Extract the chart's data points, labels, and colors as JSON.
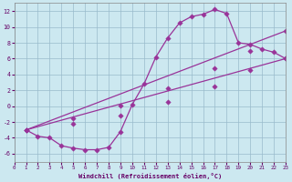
{
  "xlabel": "Windchill (Refroidissement éolien,°C)",
  "bg_color": "#cce8f0",
  "line_color": "#993399",
  "grid_color": "#99bbcc",
  "xlim": [
    0,
    23
  ],
  "ylim": [
    -7,
    13
  ],
  "xticks": [
    0,
    1,
    2,
    3,
    4,
    5,
    6,
    7,
    8,
    9,
    10,
    11,
    12,
    13,
    14,
    15,
    16,
    17,
    18,
    19,
    20,
    21,
    22,
    23
  ],
  "yticks": [
    -6,
    -4,
    -2,
    0,
    2,
    4,
    6,
    8,
    10,
    12
  ],
  "curve1_x": [
    1,
    2,
    3,
    4,
    5,
    6,
    7,
    8,
    9,
    10,
    11,
    12,
    13,
    14,
    15,
    16,
    17,
    18,
    19,
    20,
    21,
    22,
    23
  ],
  "curve1_y": [
    -3.0,
    -3.8,
    -4.0,
    -5.0,
    -5.3,
    -5.5,
    -5.5,
    -5.2,
    -3.2,
    0.2,
    2.8,
    6.2,
    8.6,
    10.5,
    11.3,
    11.6,
    12.2,
    11.7,
    8.0,
    7.8,
    7.2,
    6.8,
    6.0
  ],
  "curve2_x": [
    1,
    23
  ],
  "curve2_y": [
    -3.0,
    9.5
  ],
  "curve2_markers_x": [
    1,
    5,
    9,
    13,
    17,
    20,
    23
  ],
  "curve2_markers_y": [
    -3.0,
    -1.5,
    0.1,
    2.2,
    4.8,
    7.0,
    9.5
  ],
  "curve3_x": [
    1,
    23
  ],
  "curve3_y": [
    -3.0,
    6.0
  ],
  "curve3_markers_x": [
    1,
    5,
    9,
    13,
    17,
    20,
    23
  ],
  "curve3_markers_y": [
    -3.0,
    -2.2,
    -1.2,
    0.5,
    2.5,
    4.5,
    6.0
  ]
}
